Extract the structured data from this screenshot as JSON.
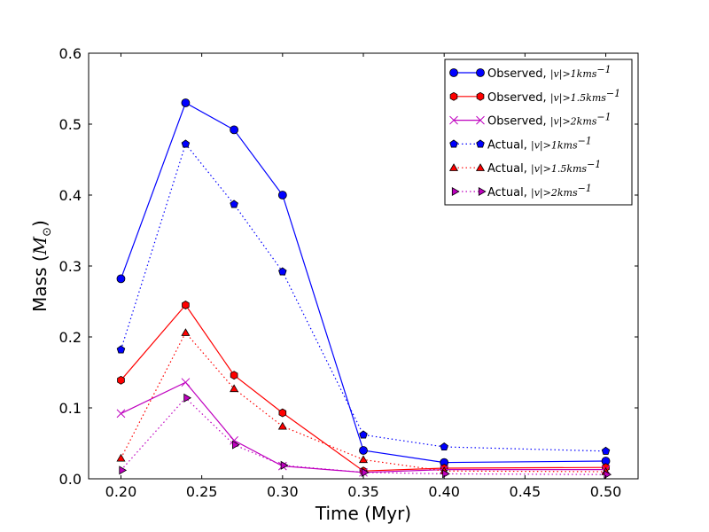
{
  "chart_data": {
    "type": "line",
    "xlabel": "Time (Myr)",
    "ylabel": "Mass (",
    "ylabel_math": "M",
    "ylabel_sub": "⊙",
    "ylabel_close": ")",
    "xlim": [
      0.18,
      0.52
    ],
    "ylim": [
      0.0,
      0.6
    ],
    "xticks": [
      "0.20",
      "0.25",
      "0.30",
      "0.35",
      "0.40",
      "0.45",
      "0.50"
    ],
    "yticks": [
      "0.0",
      "0.1",
      "0.2",
      "0.3",
      "0.4",
      "0.5",
      "0.6"
    ],
    "x": [
      0.2,
      0.24,
      0.27,
      0.3,
      0.35,
      0.4,
      0.5
    ],
    "legend_position": "top-right",
    "series": [
      {
        "name": "Observed, |v|>1kms⁻¹",
        "label_prefix": "Observed,",
        "label_math": "|v|>1kms",
        "label_sup": "−1",
        "color": "#0000ff",
        "linestyle": "solid",
        "marker": "circle",
        "values": [
          0.282,
          0.53,
          0.492,
          0.4,
          0.04,
          0.023,
          0.025
        ]
      },
      {
        "name": "Observed, |v|>1.5kms⁻¹",
        "label_prefix": "Observed,",
        "label_math": "|v|>1.5kms",
        "label_sup": "−1",
        "color": "#ff0000",
        "linestyle": "solid",
        "marker": "hexagon",
        "values": [
          0.139,
          0.245,
          0.146,
          0.093,
          0.011,
          0.015,
          0.016
        ]
      },
      {
        "name": "Observed, |v|>2kms⁻¹",
        "label_prefix": "Observed,",
        "label_math": "|v|>2kms",
        "label_sup": "−1",
        "color": "#bf00bf",
        "linestyle": "solid",
        "marker": "x",
        "values": [
          0.092,
          0.136,
          0.054,
          0.018,
          0.009,
          0.013,
          0.013
        ]
      },
      {
        "name": "Actual, |v|>1kms⁻¹",
        "label_prefix": "Actual,",
        "label_math": "|v|>1kms",
        "label_sup": "−1",
        "color": "#0000ff",
        "linestyle": "dotted",
        "marker": "pentagon",
        "values": [
          0.182,
          0.472,
          0.387,
          0.292,
          0.062,
          0.045,
          0.039
        ]
      },
      {
        "name": "Actual, |v|>1.5kms⁻¹",
        "label_prefix": "Actual,",
        "label_math": "|v|>1.5kms",
        "label_sup": "−1",
        "color": "#ff0000",
        "linestyle": "dotted",
        "marker": "triangle-up",
        "values": [
          0.029,
          0.206,
          0.127,
          0.074,
          0.027,
          0.011,
          0.01
        ]
      },
      {
        "name": "Actual, |v|>2kms⁻¹",
        "label_prefix": "Actual,",
        "label_math": "|v|>2kms",
        "label_sup": "−1",
        "color": "#bf00bf",
        "linestyle": "dotted",
        "marker": "triangle-right",
        "values": [
          0.012,
          0.114,
          0.048,
          0.019,
          0.009,
          0.007,
          0.006
        ]
      }
    ]
  }
}
